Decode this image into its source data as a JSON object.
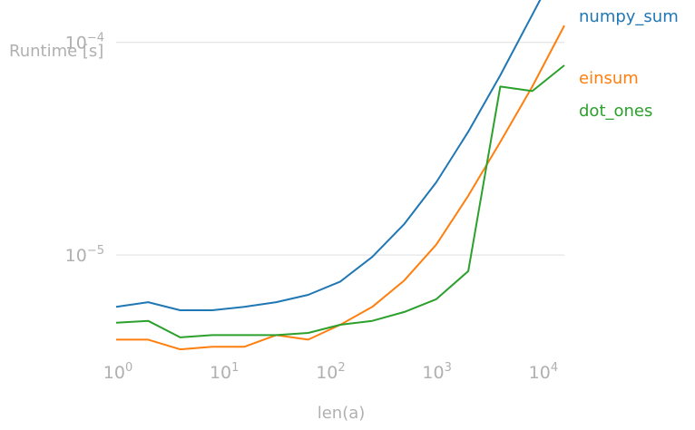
{
  "chart_data": {
    "type": "line",
    "xlabel": "len(a)",
    "ylabel": "Runtime [s]",
    "x_scale": "log",
    "y_scale": "log",
    "xlim": [
      1,
      16384
    ],
    "ylim": [
      3.5e-06,
      0.00013
    ],
    "grid": "horizontal",
    "legend": "inline labels at right end of each line",
    "x_ticks": [
      {
        "value": 1,
        "base": "10",
        "exp": "0"
      },
      {
        "value": 10,
        "base": "10",
        "exp": "1"
      },
      {
        "value": 100,
        "base": "10",
        "exp": "2"
      },
      {
        "value": 1000,
        "base": "10",
        "exp": "3"
      },
      {
        "value": 10000,
        "base": "10",
        "exp": "4"
      }
    ],
    "y_ticks": [
      {
        "value": 1e-05,
        "base": "10",
        "exp": "−5"
      },
      {
        "value": 0.0001,
        "base": "10",
        "exp": "−4"
      }
    ],
    "x": [
      1,
      2,
      4,
      8,
      16,
      32,
      64,
      128,
      256,
      512,
      1024,
      2048,
      4096,
      8192,
      16384
    ],
    "series": [
      {
        "name": "numpy_sum",
        "color": "#1f77b4",
        "values": [
          5.7e-06,
          6e-06,
          5.5e-06,
          5.5e-06,
          5.7e-06,
          6e-06,
          6.5e-06,
          7.5e-06,
          9.8e-06,
          1.4e-05,
          2.2e-05,
          3.8e-05,
          7e-05,
          0.000135,
          0.00026
        ]
      },
      {
        "name": "einsum",
        "color": "#ff7f0e",
        "values": [
          4e-06,
          4e-06,
          3.6e-06,
          3.7e-06,
          3.7e-06,
          4.2e-06,
          4e-06,
          4.7e-06,
          5.7e-06,
          7.6e-06,
          1.12e-05,
          1.9e-05,
          3.4e-05,
          6.2e-05,
          0.00012
        ]
      },
      {
        "name": "dot_ones",
        "color": "#2ca02c",
        "values": [
          4.8e-06,
          4.9e-06,
          4.1e-06,
          4.2e-06,
          4.2e-06,
          4.2e-06,
          4.3e-06,
          4.7e-06,
          4.9e-06,
          5.4e-06,
          6.2e-06,
          8.4e-06,
          6.2e-05,
          5.9e-05,
          7.8e-05
        ]
      }
    ]
  }
}
